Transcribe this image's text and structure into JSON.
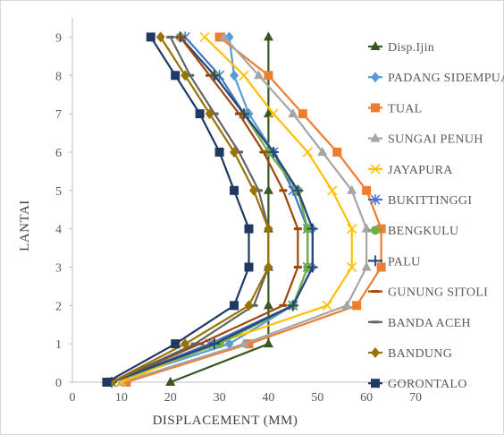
{
  "chart_data": {
    "type": "line",
    "xlabel": "DISPLACEMENT (MM)",
    "ylabel": "LANTAI",
    "xlim": [
      0,
      70
    ],
    "ylim": [
      0,
      9.5
    ],
    "xticks": [
      "0",
      "10",
      "20",
      "30",
      "40",
      "50",
      "60",
      "70"
    ],
    "yticks": [
      "0",
      "1",
      "2",
      "3",
      "4",
      "5",
      "6",
      "7",
      "8",
      "9"
    ],
    "legend_position": "right",
    "grid": false,
    "y": [
      0,
      1,
      2,
      3,
      4,
      5,
      6,
      7,
      8,
      9
    ],
    "series": [
      {
        "name": "Disp.Ijin",
        "color": "#385723",
        "marker": "triangle",
        "x": [
          20,
          40,
          40,
          40,
          40,
          40,
          40,
          40,
          40,
          40
        ]
      },
      {
        "name": "PADANG SIDEMPUAN",
        "color": "#5B9BD5",
        "marker": "diamond",
        "x": [
          8,
          32,
          45,
          49,
          49,
          46,
          41,
          36,
          33,
          32
        ]
      },
      {
        "name": "TUAL",
        "color": "#ED7D31",
        "marker": "square",
        "x": [
          11,
          36,
          58,
          63,
          63,
          60,
          54,
          47,
          40,
          30
        ]
      },
      {
        "name": "SUNGAI PENUH",
        "color": "#A5A5A5",
        "marker": "triangle",
        "x": [
          10,
          35,
          56,
          60,
          60,
          57,
          51,
          45,
          38,
          31
        ]
      },
      {
        "name": "JAYAPURA",
        "color": "#FFC000",
        "marker": "x",
        "x": [
          10,
          29,
          52,
          57,
          57,
          53,
          48,
          41,
          35,
          27
        ]
      },
      {
        "name": "BUKITTINGGI",
        "color": "#4472C4",
        "marker": "asterisk",
        "x": [
          8,
          28,
          45,
          48,
          48,
          45,
          41,
          35,
          30,
          23
        ]
      },
      {
        "name": "BENGKULU",
        "color": "#70AD47",
        "marker": "circle",
        "x": [
          8,
          30,
          45,
          48,
          48,
          46,
          40,
          35,
          29,
          22
        ]
      },
      {
        "name": "PALU",
        "color": "#264478",
        "marker": "plus",
        "x": [
          8,
          29,
          45,
          49,
          49,
          46,
          41,
          35,
          29,
          22
        ]
      },
      {
        "name": "GUNUNG SITOLI",
        "color": "#9E480E",
        "marker": "dash",
        "x": [
          8,
          26,
          43,
          46,
          46,
          43,
          39,
          34,
          28,
          22
        ]
      },
      {
        "name": "BANDA ACEH",
        "color": "#636363",
        "marker": "dash",
        "x": [
          8,
          25,
          37,
          40,
          40,
          38,
          34,
          29,
          24,
          20
        ]
      },
      {
        "name": "BANDUNG",
        "color": "#997300",
        "marker": "diamond",
        "x": [
          8,
          23,
          36,
          40,
          40,
          37,
          33,
          28,
          23,
          18
        ]
      },
      {
        "name": "GORONTALO",
        "color": "#203864",
        "marker": "square",
        "x": [
          7,
          21,
          33,
          36,
          36,
          33,
          30,
          26,
          21,
          16
        ]
      }
    ]
  }
}
